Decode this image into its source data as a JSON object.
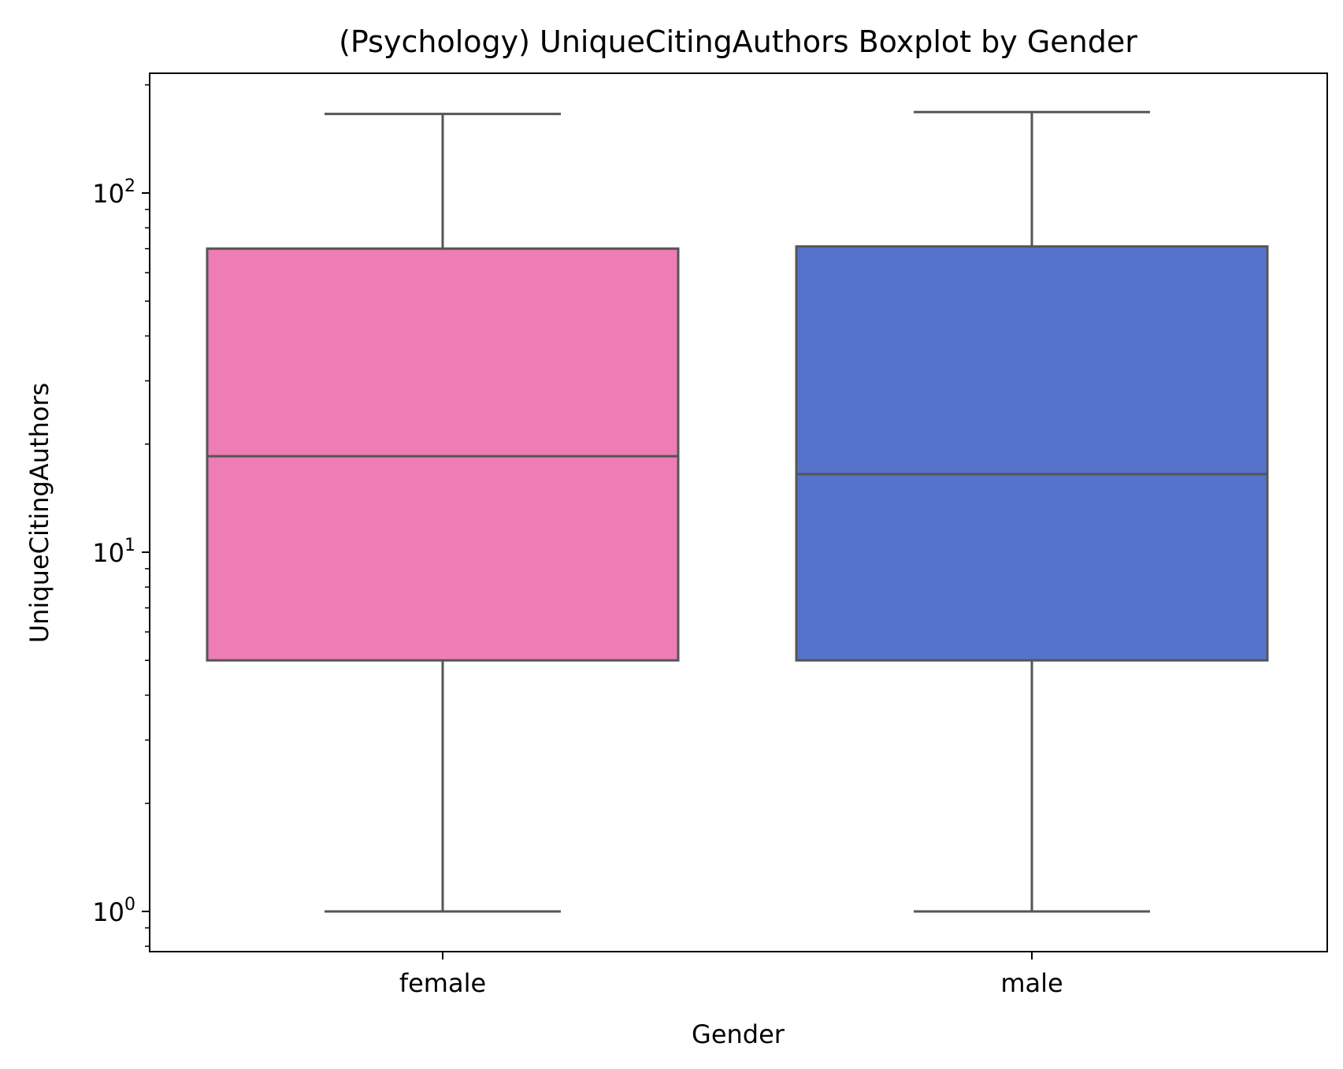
{
  "chart_data": {
    "type": "box",
    "title": "(Psychology) UniqueCitingAuthors Boxplot by Gender",
    "xlabel": "Gender",
    "ylabel": "UniqueCitingAuthors",
    "yscale": "log",
    "ylim": [
      0.78,
      210
    ],
    "grid": false,
    "legend": "none",
    "y_ticks": [
      {
        "value": 1,
        "base": "10",
        "exp": "0"
      },
      {
        "value": 10,
        "base": "10",
        "exp": "1"
      },
      {
        "value": 100,
        "base": "10",
        "exp": "2"
      }
    ],
    "categories": [
      "female",
      "male"
    ],
    "boxes": [
      {
        "category": "female",
        "whisker_low": 1,
        "q1": 5,
        "median": 18.5,
        "q3": 70,
        "whisker_high": 166,
        "color": "#ED7DB4"
      },
      {
        "category": "male",
        "whisker_low": 1,
        "q1": 5,
        "median": 16.5,
        "q3": 71,
        "whisker_high": 168,
        "color": "#5573CA"
      }
    ],
    "line_color": "#555555"
  }
}
